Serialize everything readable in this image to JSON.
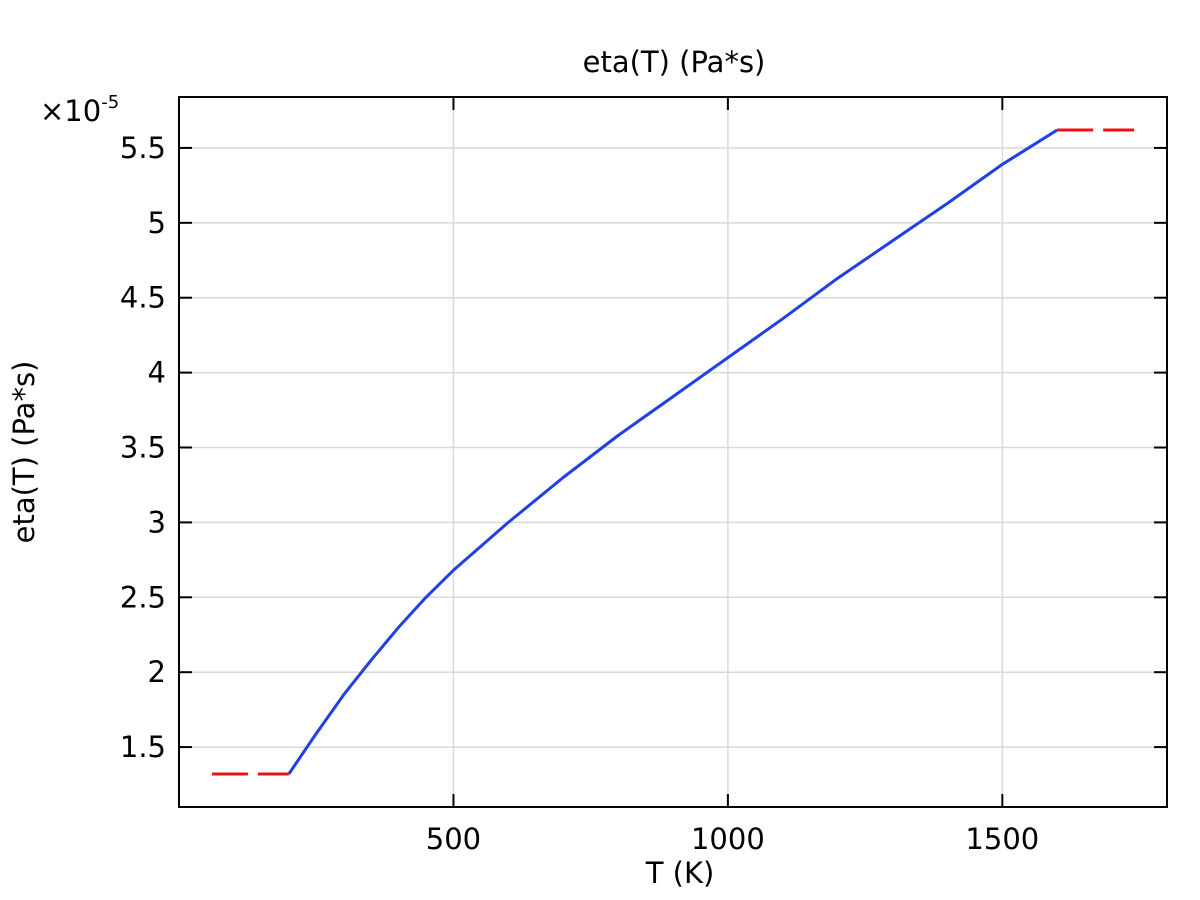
{
  "chart_data": {
    "type": "line",
    "title": "eta(T) (Pa*s)",
    "xlabel": "T (K)",
    "ylabel": "eta(T) (Pa*s)",
    "y_multiplier_base": "×10",
    "y_multiplier_exp": "-5",
    "xlim": [
      0,
      1800
    ],
    "ylim": [
      1.1,
      5.84
    ],
    "x_ticks": [
      500,
      1000,
      1500
    ],
    "x_tick_labels": [
      "500",
      "1000",
      "1500"
    ],
    "y_ticks": [
      1.5,
      2,
      2.5,
      3,
      3.5,
      4,
      4.5,
      5,
      5.5
    ],
    "y_tick_labels": [
      "1.5",
      "2",
      "2.5",
      "3",
      "3.5",
      "4",
      "4.5",
      "5",
      "5.5"
    ],
    "grid": true,
    "series": [
      {
        "style": "solid",
        "color": "#1f3fe8",
        "x": [
          200,
          250,
          300,
          350,
          400,
          450,
          500,
          600,
          700,
          800,
          900,
          1000,
          1100,
          1200,
          1300,
          1400,
          1500,
          1600
        ],
        "y": [
          1.32,
          1.59,
          1.85,
          2.08,
          2.3,
          2.5,
          2.68,
          3.0,
          3.3,
          3.58,
          3.84,
          4.1,
          4.36,
          4.63,
          4.88,
          5.13,
          5.39,
          5.62
        ]
      },
      {
        "style": "dashed",
        "color": "#ee1111",
        "x": [
          60,
          200
        ],
        "y": [
          1.32,
          1.32
        ]
      },
      {
        "style": "dashed",
        "color": "#ee1111",
        "x": [
          1600,
          1740
        ],
        "y": [
          5.62,
          5.62
        ]
      }
    ]
  }
}
